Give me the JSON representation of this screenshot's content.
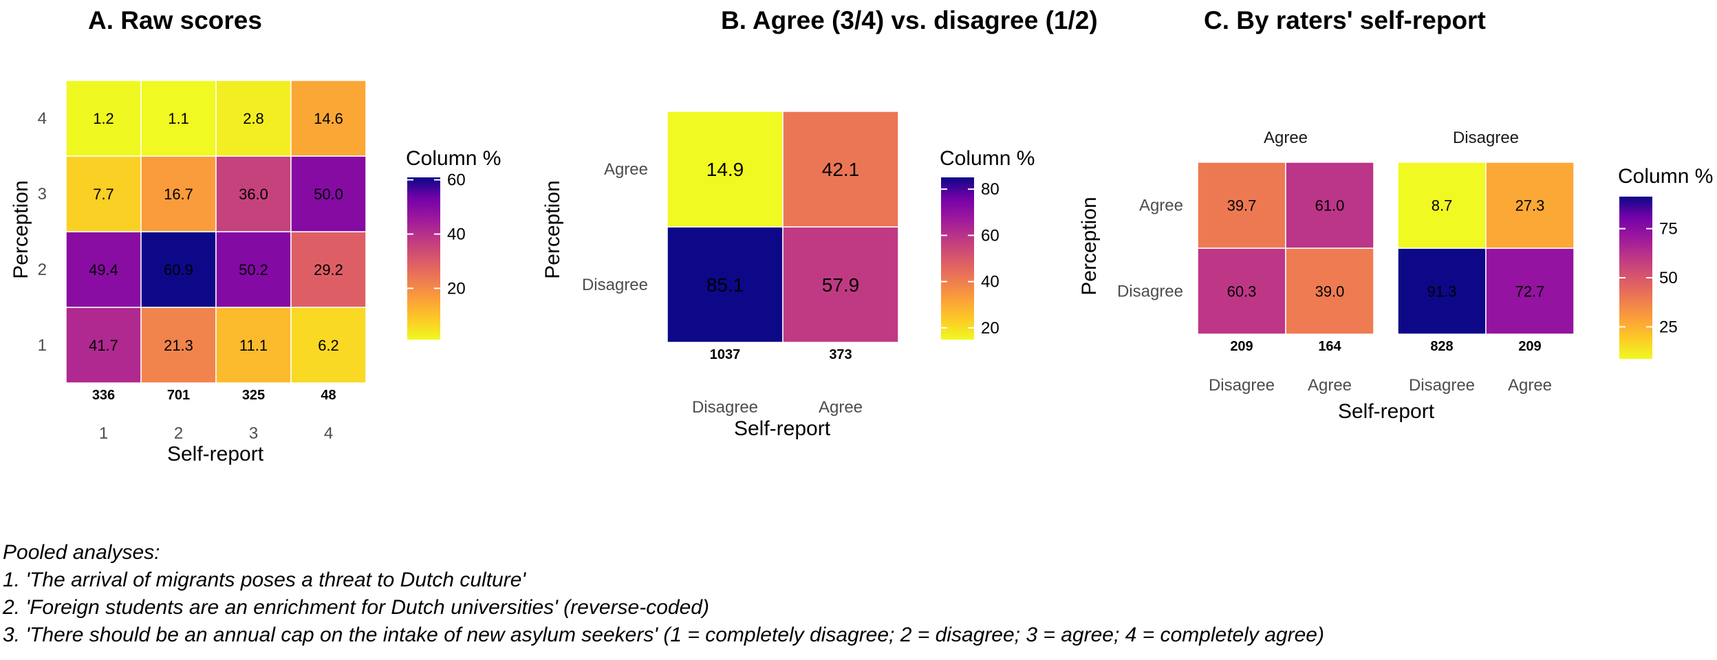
{
  "colors": {
    "scale_low": "#f0f921",
    "scale_high": "#0d0887",
    "palette": "plasma (reversed)",
    "cell_border": "#ffffff",
    "tick_text": "#4d4d4d"
  },
  "chart_data": [
    {
      "type": "heatmap",
      "title": "A. Raw scores",
      "xlabel": "Self-report",
      "ylabel": "Perception",
      "x_categories": [
        "1",
        "2",
        "3",
        "4"
      ],
      "y_categories": [
        "1",
        "2",
        "3",
        "4"
      ],
      "values": [
        [
          41.7,
          21.3,
          11.1,
          6.2
        ],
        [
          49.4,
          60.9,
          50.2,
          29.2
        ],
        [
          7.7,
          16.7,
          36.0,
          50.0
        ],
        [
          1.2,
          1.1,
          2.8,
          14.6
        ]
      ],
      "value_labels": [
        [
          "41.7",
          "21.3",
          "11.1",
          "6.2"
        ],
        [
          "49.4",
          "60.9",
          "50.2",
          "29.2"
        ],
        [
          "7.7",
          "16.7",
          "36.0",
          "50.0"
        ],
        [
          "1.2",
          "1.1",
          "2.8",
          "14.6"
        ]
      ],
      "column_counts": [
        "336",
        "701",
        "325",
        "48"
      ],
      "legend": {
        "title": "Column %",
        "min": 1.1,
        "max": 60.9,
        "ticks": [
          20,
          40,
          60
        ],
        "tick_labels": [
          "20",
          "40",
          "60"
        ],
        "placement": "right"
      }
    },
    {
      "type": "heatmap",
      "title": "B. Agree (3/4) vs. disagree (1/2)",
      "xlabel": "Self-report",
      "ylabel": "Perception",
      "x_categories": [
        "Disagree",
        "Agree"
      ],
      "y_categories": [
        "Disagree",
        "Agree"
      ],
      "values": [
        [
          85.1,
          57.9
        ],
        [
          14.9,
          42.1
        ]
      ],
      "value_labels": [
        [
          "85.1",
          "57.9"
        ],
        [
          "14.9",
          "42.1"
        ]
      ],
      "column_counts": [
        "1037",
        "373"
      ],
      "legend": {
        "title": "Column %",
        "min": 14.9,
        "max": 85.1,
        "ticks": [
          20,
          40,
          60,
          80
        ],
        "tick_labels": [
          "20",
          "40",
          "60",
          "80"
        ],
        "placement": "right"
      }
    },
    {
      "type": "heatmap",
      "title": "C. By raters' self-report",
      "xlabel": "Self-report",
      "ylabel": "Perception",
      "legend": {
        "title": "Column %",
        "min": 8.7,
        "max": 91.3,
        "ticks": [
          25,
          50,
          75
        ],
        "tick_labels": [
          "25",
          "50",
          "75"
        ],
        "placement": "right"
      },
      "facets": [
        {
          "label": "Agree",
          "x_categories": [
            "Disagree",
            "Agree"
          ],
          "y_categories": [
            "Disagree",
            "Agree"
          ],
          "values": [
            [
              60.3,
              39.0
            ],
            [
              39.7,
              61.0
            ]
          ],
          "value_labels": [
            [
              "60.3",
              "39.0"
            ],
            [
              "39.7",
              "61.0"
            ]
          ],
          "column_counts": [
            "209",
            "164"
          ]
        },
        {
          "label": "Disagree",
          "x_categories": [
            "Disagree",
            "Agree"
          ],
          "y_categories": [
            "Disagree",
            "Agree"
          ],
          "values": [
            [
              91.3,
              72.7
            ],
            [
              8.7,
              27.3
            ]
          ],
          "value_labels": [
            [
              "91.3",
              "72.7"
            ],
            [
              "8.7",
              "27.3"
            ]
          ],
          "column_counts": [
            "828",
            "209"
          ]
        }
      ]
    }
  ],
  "caption": {
    "lines": [
      "Pooled analyses:",
      "1. 'The arrival of migrants poses a threat to Dutch culture'",
      "2. 'Foreign students are an enrichment for Dutch universities' (reverse-coded)",
      "3. 'There should be an annual cap on the intake of new asylum seekers' (1 = completely disagree; 2 = disagree; 3 = agree; 4 = completely agree)"
    ]
  }
}
